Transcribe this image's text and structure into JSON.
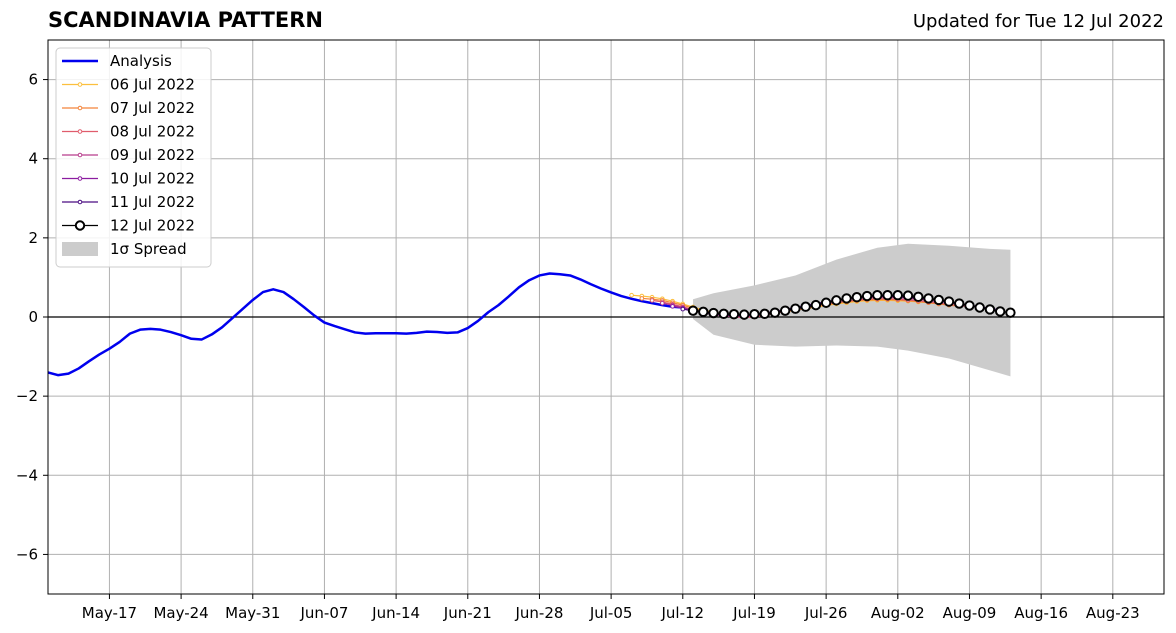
{
  "header": {
    "title": "SCANDINAVIA PATTERN",
    "updated": "Updated for Tue 12 Jul 2022"
  },
  "chart_data": {
    "type": "line",
    "title": "SCANDINAVIA PATTERN",
    "xlabel": "",
    "ylabel": "",
    "xlim": [
      "2022-05-11",
      "2022-08-28"
    ],
    "ylim": [
      -7,
      7
    ],
    "grid": true,
    "legend_position": "top-left",
    "x_ticks": [
      "May-17",
      "May-24",
      "May-31",
      "Jun-07",
      "Jun-14",
      "Jun-21",
      "Jun-28",
      "Jul-05",
      "Jul-12",
      "Jul-19",
      "Jul-26",
      "Aug-02",
      "Aug-09",
      "Aug-16",
      "Aug-23"
    ],
    "x_tick_dates": [
      "2022-05-17",
      "2022-05-24",
      "2022-05-31",
      "2022-06-07",
      "2022-06-14",
      "2022-06-21",
      "2022-06-28",
      "2022-07-05",
      "2022-07-12",
      "2022-07-19",
      "2022-07-26",
      "2022-08-02",
      "2022-08-09",
      "2022-08-16",
      "2022-08-23"
    ],
    "y_ticks": [
      -6,
      -4,
      -2,
      0,
      2,
      4,
      6
    ],
    "y_tick_labels": [
      "−6",
      "−4",
      "−2",
      "0",
      "2",
      "4",
      "6"
    ],
    "spread": {
      "name": "1σ Spread",
      "color": "#cccccc",
      "x": [
        "2022-07-13",
        "2022-07-15",
        "2022-07-19",
        "2022-07-23",
        "2022-07-27",
        "2022-07-31",
        "2022-08-03",
        "2022-08-07",
        "2022-08-11",
        "2022-08-13"
      ],
      "upper": [
        0.45,
        0.6,
        0.8,
        1.05,
        1.45,
        1.75,
        1.85,
        1.8,
        1.72,
        1.7
      ],
      "lower": [
        -0.05,
        -0.45,
        -0.7,
        -0.75,
        -0.72,
        -0.75,
        -0.85,
        -1.05,
        -1.35,
        -1.5
      ]
    },
    "series": [
      {
        "name": "Analysis",
        "color": "#0000ee",
        "x": [
          "2022-05-11",
          "2022-05-12",
          "2022-05-13",
          "2022-05-14",
          "2022-05-15",
          "2022-05-16",
          "2022-05-17",
          "2022-05-18",
          "2022-05-19",
          "2022-05-20",
          "2022-05-21",
          "2022-05-22",
          "2022-05-23",
          "2022-05-24",
          "2022-05-25",
          "2022-05-26",
          "2022-05-27",
          "2022-05-28",
          "2022-05-29",
          "2022-05-30",
          "2022-05-31",
          "2022-06-01",
          "2022-06-02",
          "2022-06-03",
          "2022-06-04",
          "2022-06-05",
          "2022-06-06",
          "2022-06-07",
          "2022-06-08",
          "2022-06-09",
          "2022-06-10",
          "2022-06-11",
          "2022-06-12",
          "2022-06-13",
          "2022-06-14",
          "2022-06-15",
          "2022-06-16",
          "2022-06-17",
          "2022-06-18",
          "2022-06-19",
          "2022-06-20",
          "2022-06-21",
          "2022-06-22",
          "2022-06-23",
          "2022-06-24",
          "2022-06-25",
          "2022-06-26",
          "2022-06-27",
          "2022-06-28",
          "2022-06-29",
          "2022-06-30",
          "2022-07-01",
          "2022-07-02",
          "2022-07-03",
          "2022-07-04",
          "2022-07-05",
          "2022-07-06",
          "2022-07-07",
          "2022-07-08",
          "2022-07-09",
          "2022-07-10",
          "2022-07-11",
          "2022-07-12"
        ],
        "values": [
          -1.4,
          -1.47,
          -1.43,
          -1.3,
          -1.12,
          -0.95,
          -0.8,
          -0.63,
          -0.42,
          -0.32,
          -0.3,
          -0.32,
          -0.38,
          -0.46,
          -0.55,
          -0.57,
          -0.44,
          -0.26,
          -0.03,
          0.2,
          0.43,
          0.63,
          0.7,
          0.63,
          0.45,
          0.25,
          0.04,
          -0.14,
          -0.23,
          -0.31,
          -0.39,
          -0.42,
          -0.41,
          -0.41,
          -0.41,
          -0.42,
          -0.4,
          -0.37,
          -0.38,
          -0.4,
          -0.39,
          -0.28,
          -0.1,
          0.12,
          0.3,
          0.52,
          0.75,
          0.93,
          1.05,
          1.1,
          1.08,
          1.05,
          0.95,
          0.83,
          0.72,
          0.62,
          0.53,
          0.46,
          0.4,
          0.35,
          0.3,
          0.26,
          0.24
        ]
      },
      {
        "name": "06 Jul 2022",
        "color": "#fcbf3d",
        "x": [
          "2022-07-07",
          "2022-07-08",
          "2022-07-09",
          "2022-07-10",
          "2022-07-11",
          "2022-07-12",
          "2022-07-13",
          "2022-07-14",
          "2022-07-15",
          "2022-07-16",
          "2022-07-17",
          "2022-07-18",
          "2022-07-19",
          "2022-07-20",
          "2022-07-21",
          "2022-07-22",
          "2022-07-23",
          "2022-07-24",
          "2022-07-25",
          "2022-07-26",
          "2022-07-27",
          "2022-07-28",
          "2022-07-29",
          "2022-07-30",
          "2022-07-31",
          "2022-08-01",
          "2022-08-02",
          "2022-08-03",
          "2022-08-04",
          "2022-08-05",
          "2022-08-06",
          "2022-08-07"
        ],
        "values": [
          0.55,
          0.53,
          0.5,
          0.46,
          0.4,
          0.33,
          0.25,
          0.18,
          0.12,
          0.08,
          0.05,
          0.04,
          0.05,
          0.07,
          0.1,
          0.13,
          0.17,
          0.21,
          0.25,
          0.29,
          0.33,
          0.36,
          0.39,
          0.41,
          0.42,
          0.42,
          0.41,
          0.4,
          0.38,
          0.36,
          0.33,
          0.3
        ]
      },
      {
        "name": "07 Jul 2022",
        "color": "#f3843b",
        "x": [
          "2022-07-08",
          "2022-07-09",
          "2022-07-10",
          "2022-07-11",
          "2022-07-12",
          "2022-07-13",
          "2022-07-14",
          "2022-07-15",
          "2022-07-16",
          "2022-07-17",
          "2022-07-18",
          "2022-07-19",
          "2022-07-20",
          "2022-07-21",
          "2022-07-22",
          "2022-07-23",
          "2022-07-24",
          "2022-07-25",
          "2022-07-26",
          "2022-07-27",
          "2022-07-28",
          "2022-07-29",
          "2022-07-30",
          "2022-07-31",
          "2022-08-01",
          "2022-08-02",
          "2022-08-03",
          "2022-08-04",
          "2022-08-05",
          "2022-08-06",
          "2022-08-07",
          "2022-08-08"
        ],
        "values": [
          0.47,
          0.45,
          0.42,
          0.36,
          0.3,
          0.22,
          0.15,
          0.1,
          0.06,
          0.03,
          0.02,
          0.03,
          0.06,
          0.1,
          0.14,
          0.18,
          0.22,
          0.27,
          0.31,
          0.35,
          0.38,
          0.41,
          0.43,
          0.44,
          0.44,
          0.43,
          0.41,
          0.39,
          0.36,
          0.33,
          0.3,
          0.27
        ]
      },
      {
        "name": "08 Jul 2022",
        "color": "#e05c6c",
        "x": [
          "2022-07-09",
          "2022-07-10",
          "2022-07-11",
          "2022-07-12",
          "2022-07-13",
          "2022-07-14",
          "2022-07-15",
          "2022-07-16",
          "2022-07-17",
          "2022-07-18",
          "2022-07-19",
          "2022-07-20",
          "2022-07-21",
          "2022-07-22",
          "2022-07-23",
          "2022-07-24",
          "2022-07-25",
          "2022-07-26",
          "2022-07-27",
          "2022-07-28",
          "2022-07-29",
          "2022-07-30",
          "2022-07-31",
          "2022-08-01",
          "2022-08-02",
          "2022-08-03",
          "2022-08-04",
          "2022-08-05",
          "2022-08-06",
          "2022-08-07",
          "2022-08-08",
          "2022-08-09"
        ],
        "values": [
          0.42,
          0.38,
          0.32,
          0.26,
          0.18,
          0.12,
          0.07,
          0.03,
          0.0,
          -0.01,
          0.0,
          0.04,
          0.09,
          0.14,
          0.19,
          0.24,
          0.29,
          0.33,
          0.37,
          0.4,
          0.43,
          0.45,
          0.46,
          0.46,
          0.45,
          0.43,
          0.41,
          0.38,
          0.35,
          0.32,
          0.29,
          0.26
        ]
      },
      {
        "name": "09 Jul 2022",
        "color": "#b83c8c",
        "x": [
          "2022-07-10",
          "2022-07-11",
          "2022-07-12",
          "2022-07-13",
          "2022-07-14",
          "2022-07-15",
          "2022-07-16",
          "2022-07-17",
          "2022-07-18",
          "2022-07-19",
          "2022-07-20",
          "2022-07-21",
          "2022-07-22",
          "2022-07-23",
          "2022-07-24",
          "2022-07-25",
          "2022-07-26",
          "2022-07-27",
          "2022-07-28",
          "2022-07-29",
          "2022-07-30",
          "2022-07-31",
          "2022-08-01",
          "2022-08-02",
          "2022-08-03",
          "2022-08-04",
          "2022-08-05",
          "2022-08-06",
          "2022-08-07",
          "2022-08-08",
          "2022-08-09",
          "2022-08-10"
        ],
        "values": [
          0.35,
          0.3,
          0.24,
          0.17,
          0.11,
          0.06,
          0.03,
          0.01,
          0.01,
          0.03,
          0.07,
          0.12,
          0.17,
          0.22,
          0.27,
          0.32,
          0.36,
          0.4,
          0.44,
          0.47,
          0.49,
          0.5,
          0.5,
          0.49,
          0.47,
          0.45,
          0.42,
          0.39,
          0.36,
          0.32,
          0.28,
          0.24
        ]
      },
      {
        "name": "10 Jul 2022",
        "color": "#8c1ca0",
        "x": [
          "2022-07-11",
          "2022-07-12",
          "2022-07-13",
          "2022-07-14",
          "2022-07-15",
          "2022-07-16",
          "2022-07-17",
          "2022-07-18",
          "2022-07-19",
          "2022-07-20",
          "2022-07-21",
          "2022-07-22",
          "2022-07-23",
          "2022-07-24",
          "2022-07-25",
          "2022-07-26",
          "2022-07-27",
          "2022-07-28",
          "2022-07-29",
          "2022-07-30",
          "2022-07-31",
          "2022-08-01",
          "2022-08-02",
          "2022-08-03",
          "2022-08-04",
          "2022-08-05",
          "2022-08-06",
          "2022-08-07",
          "2022-08-08",
          "2022-08-09",
          "2022-08-10",
          "2022-08-11"
        ],
        "values": [
          0.27,
          0.22,
          0.16,
          0.11,
          0.07,
          0.04,
          0.03,
          0.03,
          0.05,
          0.09,
          0.14,
          0.19,
          0.24,
          0.29,
          0.34,
          0.38,
          0.42,
          0.46,
          0.49,
          0.51,
          0.52,
          0.52,
          0.51,
          0.49,
          0.47,
          0.44,
          0.41,
          0.37,
          0.33,
          0.29,
          0.25,
          0.21
        ]
      },
      {
        "name": "11 Jul 2022",
        "color": "#4a0c82",
        "x": [
          "2022-07-12",
          "2022-07-13",
          "2022-07-14",
          "2022-07-15",
          "2022-07-16",
          "2022-07-17",
          "2022-07-18",
          "2022-07-19",
          "2022-07-20",
          "2022-07-21",
          "2022-07-22",
          "2022-07-23",
          "2022-07-24",
          "2022-07-25",
          "2022-07-26",
          "2022-07-27",
          "2022-07-28",
          "2022-07-29",
          "2022-07-30",
          "2022-07-31",
          "2022-08-01",
          "2022-08-02",
          "2022-08-03",
          "2022-08-04",
          "2022-08-05",
          "2022-08-06",
          "2022-08-07",
          "2022-08-08",
          "2022-08-09",
          "2022-08-10",
          "2022-08-11",
          "2022-08-12"
        ],
        "values": [
          0.2,
          0.15,
          0.11,
          0.08,
          0.06,
          0.05,
          0.05,
          0.07,
          0.1,
          0.14,
          0.19,
          0.24,
          0.29,
          0.34,
          0.39,
          0.43,
          0.47,
          0.5,
          0.52,
          0.53,
          0.53,
          0.52,
          0.5,
          0.48,
          0.45,
          0.42,
          0.38,
          0.34,
          0.3,
          0.26,
          0.22,
          0.18
        ]
      },
      {
        "name": "12 Jul 2022",
        "color": "#000000",
        "x": [
          "2022-07-13",
          "2022-07-14",
          "2022-07-15",
          "2022-07-16",
          "2022-07-17",
          "2022-07-18",
          "2022-07-19",
          "2022-07-20",
          "2022-07-21",
          "2022-07-22",
          "2022-07-23",
          "2022-07-24",
          "2022-07-25",
          "2022-07-26",
          "2022-07-27",
          "2022-07-28",
          "2022-07-29",
          "2022-07-30",
          "2022-07-31",
          "2022-08-01",
          "2022-08-02",
          "2022-08-03",
          "2022-08-04",
          "2022-08-05",
          "2022-08-06",
          "2022-08-07",
          "2022-08-08",
          "2022-08-09",
          "2022-08-10",
          "2022-08-11",
          "2022-08-12",
          "2022-08-13"
        ],
        "values": [
          0.16,
          0.13,
          0.1,
          0.08,
          0.07,
          0.06,
          0.07,
          0.08,
          0.11,
          0.16,
          0.21,
          0.26,
          0.3,
          0.36,
          0.42,
          0.47,
          0.5,
          0.53,
          0.55,
          0.55,
          0.55,
          0.54,
          0.51,
          0.47,
          0.43,
          0.39,
          0.34,
          0.29,
          0.24,
          0.19,
          0.14,
          0.11
        ]
      }
    ]
  }
}
